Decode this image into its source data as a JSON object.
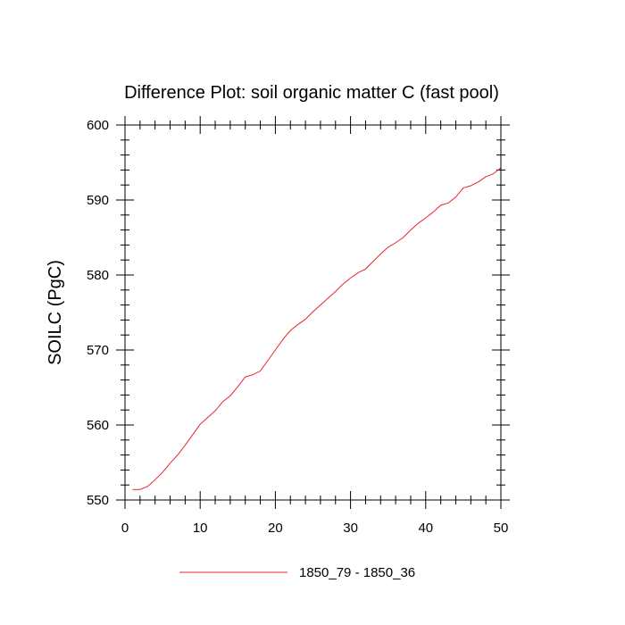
{
  "chart_data": {
    "type": "line",
    "title": "Difference Plot: soil organic matter C (fast pool)",
    "xlabel": "",
    "ylabel": "SOILC  (PgC)",
    "xlim": [
      0,
      50
    ],
    "ylim": [
      550,
      600
    ],
    "xticks": [
      0,
      10,
      20,
      30,
      40,
      50
    ],
    "yticks": [
      550,
      560,
      570,
      580,
      590,
      600
    ],
    "grid": false,
    "legend_position": "bottom-center",
    "series": [
      {
        "name": "1850_79 - 1850_36",
        "color": "#e8242e",
        "x": [
          1,
          2,
          3,
          4,
          5,
          6,
          7,
          8,
          9,
          10,
          11,
          12,
          13,
          14,
          15,
          16,
          17,
          18,
          19,
          20,
          21,
          22,
          23,
          24,
          25,
          26,
          27,
          28,
          29,
          30,
          31,
          32,
          33,
          34,
          35,
          36,
          37,
          38,
          39,
          40,
          41,
          42,
          43,
          44,
          45,
          46,
          47,
          48,
          49,
          50
        ],
        "y": [
          551.4,
          551.4,
          551.8,
          552.7,
          553.7,
          554.9,
          556.0,
          557.3,
          558.7,
          560.1,
          561.0,
          561.9,
          563.1,
          563.9,
          565.1,
          566.4,
          566.7,
          567.2,
          568.6,
          570.0,
          571.4,
          572.6,
          573.4,
          574.1,
          575.1,
          576.0,
          576.9,
          577.8,
          578.8,
          579.6,
          580.3,
          580.8,
          581.8,
          582.8,
          583.7,
          584.3,
          585.0,
          586.0,
          586.9,
          587.6,
          588.4,
          589.3,
          589.6,
          590.4,
          591.6,
          591.9,
          592.4,
          593.1,
          593.5,
          594.3
        ]
      }
    ]
  }
}
